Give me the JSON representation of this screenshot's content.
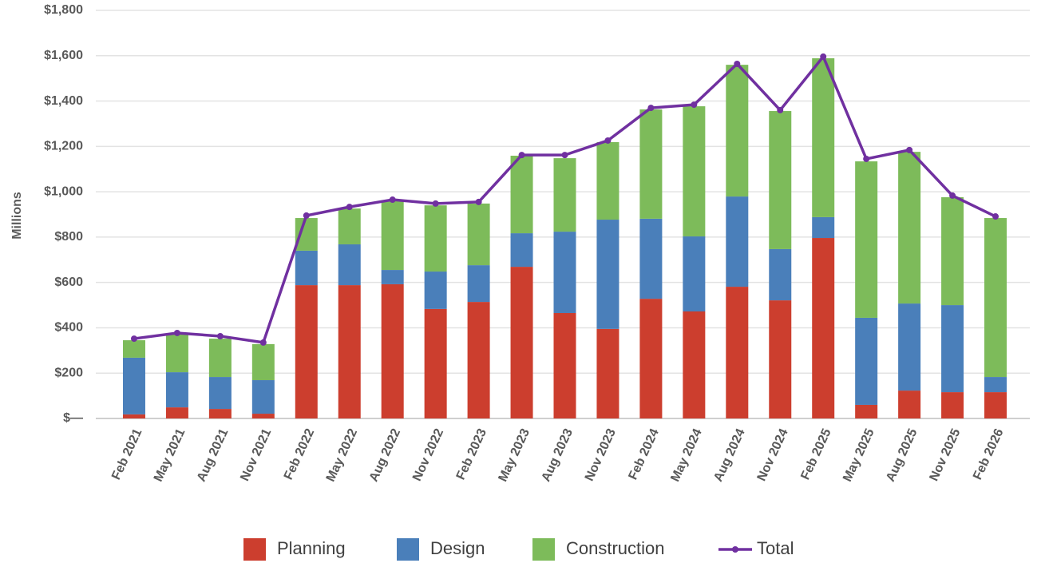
{
  "chart_data": {
    "type": "bar",
    "stacked": true,
    "y_axis_label": "Millions",
    "categories": [
      "Feb 2021",
      "May 2021",
      "Aug 2021",
      "Nov 2021",
      "Feb 2022",
      "May 2022",
      "Aug 2022",
      "Nov 2022",
      "Feb 2023",
      "May 2023",
      "Aug 2023",
      "Nov 2023",
      "Feb 2024",
      "May 2024",
      "Aug 2024",
      "Nov 2024",
      "Feb 2025",
      "May 2025",
      "Aug 2025",
      "Nov 2025",
      "Feb 2026"
    ],
    "series": [
      {
        "name": "Planning",
        "color": "#cc3e2e",
        "values": [
          18,
          49,
          42,
          21,
          588,
          588,
          592,
          483,
          514,
          669,
          465,
          395,
          528,
          472,
          581,
          521,
          796,
          60,
          123,
          116,
          116
        ]
      },
      {
        "name": "Design",
        "color": "#4a7fba",
        "values": [
          250,
          155,
          141,
          148,
          152,
          180,
          63,
          165,
          162,
          148,
          359,
          482,
          353,
          331,
          398,
          226,
          92,
          384,
          384,
          384,
          67
        ]
      },
      {
        "name": "Construction",
        "color": "#7dbb5a",
        "values": [
          77,
          166,
          169,
          159,
          144,
          158,
          307,
          292,
          272,
          342,
          324,
          342,
          482,
          574,
          581,
          609,
          701,
          690,
          669,
          476,
          701
        ]
      },
      {
        "name": "Total",
        "color": "#7030a0",
        "type": "line",
        "values": [
          352,
          377,
          363,
          335,
          895,
          933,
          965,
          948,
          955,
          1162,
          1162,
          1226,
          1370,
          1384,
          1564,
          1360,
          1596,
          1145,
          1184,
          983,
          891
        ]
      }
    ],
    "ylim": [
      0,
      1800
    ],
    "yticks": [
      {
        "value": 0,
        "label": "$—"
      },
      {
        "value": 200,
        "label": "$200"
      },
      {
        "value": 400,
        "label": "$400"
      },
      {
        "value": 600,
        "label": "$600"
      },
      {
        "value": 800,
        "label": "$800"
      },
      {
        "value": 1000,
        "label": "$1,000"
      },
      {
        "value": 1200,
        "label": "$1,200"
      },
      {
        "value": 1400,
        "label": "$1,400"
      },
      {
        "value": 1600,
        "label": "$1,600"
      },
      {
        "value": 1800,
        "label": "$1,800"
      }
    ],
    "grid": true,
    "legend": "bottom"
  }
}
